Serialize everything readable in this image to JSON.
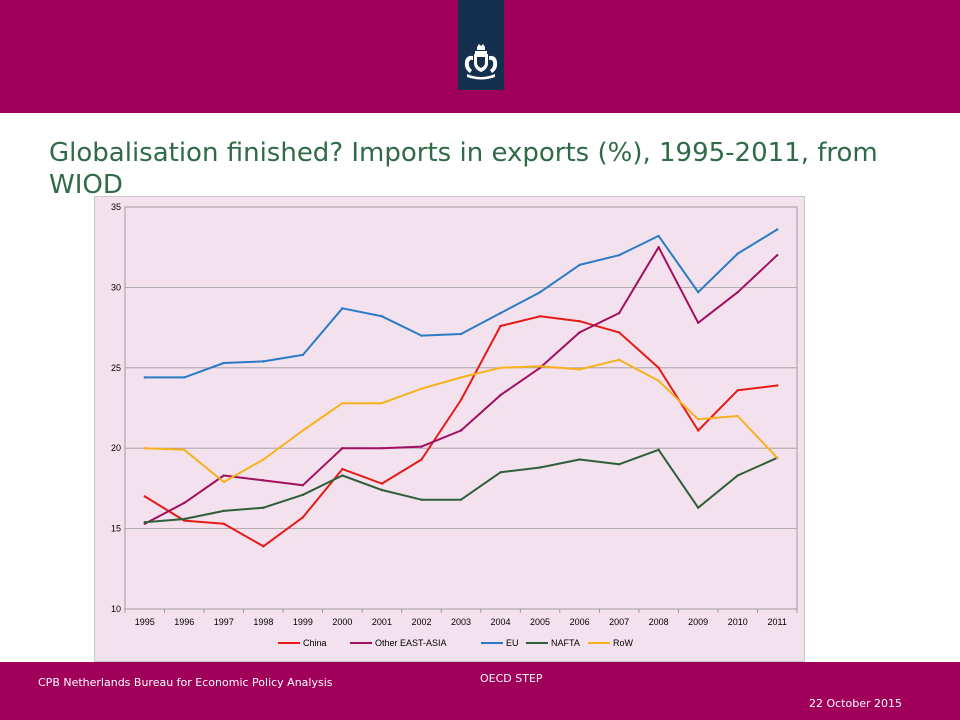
{
  "slide": {
    "title": "Globalisation finished? Imports in exports (%), 1995-2011, from WIOD"
  },
  "footer": {
    "organisation": "CPB Netherlands Bureau for Economic Policy Analysis",
    "event": "OECD STEP",
    "date": "22 October 2015"
  },
  "colors": {
    "brand": "#a0005a",
    "emblem_band": "#15304f",
    "title_text": "#2e6b46",
    "plot_background": "#f4e1ee"
  },
  "icons": {
    "emblem": "royal-coat-of-arms-icon"
  },
  "chart_data": {
    "type": "line",
    "title": "",
    "xlabel": "",
    "ylabel": "",
    "grid": true,
    "legend_position": "bottom",
    "ylim": [
      10,
      35
    ],
    "yticks": [
      10,
      15,
      20,
      25,
      30,
      35
    ],
    "categories": [
      "1995",
      "1996",
      "1997",
      "1998",
      "1999",
      "2000",
      "2001",
      "2002",
      "2003",
      "2004",
      "2005",
      "2006",
      "2007",
      "2008",
      "2009",
      "2010",
      "2011"
    ],
    "series": [
      {
        "name": "China",
        "color": "#e41b17",
        "values": [
          17.0,
          15.5,
          15.3,
          13.9,
          15.7,
          18.7,
          17.8,
          19.3,
          23.0,
          27.6,
          28.2,
          27.9,
          27.2,
          25.0,
          21.1,
          23.6,
          23.9
        ]
      },
      {
        "name": "Other EAST-ASIA",
        "color": "#a0105f",
        "values": [
          15.3,
          16.6,
          18.3,
          18.0,
          17.7,
          20.0,
          20.0,
          20.1,
          21.1,
          23.3,
          25.0,
          27.2,
          28.4,
          32.5,
          27.8,
          29.7,
          32.0
        ]
      },
      {
        "name": "EU",
        "color": "#2a7bc6",
        "values": [
          24.4,
          24.4,
          25.3,
          25.4,
          25.8,
          28.7,
          28.2,
          27.0,
          27.1,
          28.4,
          29.7,
          31.4,
          32.0,
          33.2,
          29.7,
          32.1,
          33.6
        ]
      },
      {
        "name": "NAFTA",
        "color": "#2e5e3a",
        "values": [
          15.4,
          15.6,
          16.1,
          16.3,
          17.1,
          18.3,
          17.4,
          16.8,
          16.8,
          18.5,
          18.8,
          19.3,
          19.0,
          19.9,
          16.3,
          18.3,
          19.4
        ]
      },
      {
        "name": "RoW",
        "color": "#f6b21c",
        "values": [
          20.0,
          19.9,
          17.9,
          19.3,
          21.1,
          22.8,
          22.8,
          23.7,
          24.4,
          25.0,
          25.1,
          24.9,
          25.5,
          24.2,
          21.8,
          22.0,
          19.4
        ]
      }
    ]
  }
}
